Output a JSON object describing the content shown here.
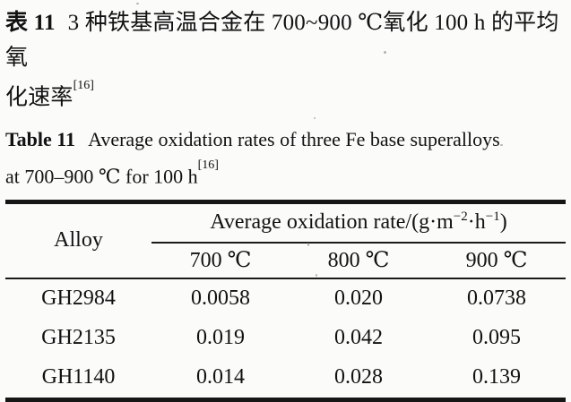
{
  "page": {
    "background": "#fbfbf9",
    "ink": "#121212",
    "rule_color": "#161616"
  },
  "caption_zh": {
    "label": "表 11",
    "line1": "3 种铁基高温合金在 700~900 ℃氧化 100 h 的平均氧",
    "line2": "化速率",
    "ref": "[16]"
  },
  "caption_en": {
    "label": "Table 11",
    "line1": "Average oxidation rates of three Fe base superalloys",
    "line2": "at 700–900 ℃ for 100 h",
    "ref": "[16]"
  },
  "table": {
    "header": {
      "alloy": "Alloy",
      "unit_prefix": "Average oxidation rate/(g·m",
      "unit_sup1": "−2",
      "unit_mid": "·h",
      "unit_sup2": "−1",
      "unit_suffix": ")",
      "temps": [
        "700 ℃",
        "800 ℃",
        "900 ℃"
      ]
    },
    "rows": [
      {
        "alloy": "GH2984",
        "values": [
          "0.0058",
          "0.020",
          "0.0738"
        ]
      },
      {
        "alloy": "GH2135",
        "values": [
          "0.019",
          "0.042",
          "0.095"
        ]
      },
      {
        "alloy": "GH1140",
        "values": [
          "0.014",
          "0.028",
          "0.139"
        ]
      }
    ]
  }
}
